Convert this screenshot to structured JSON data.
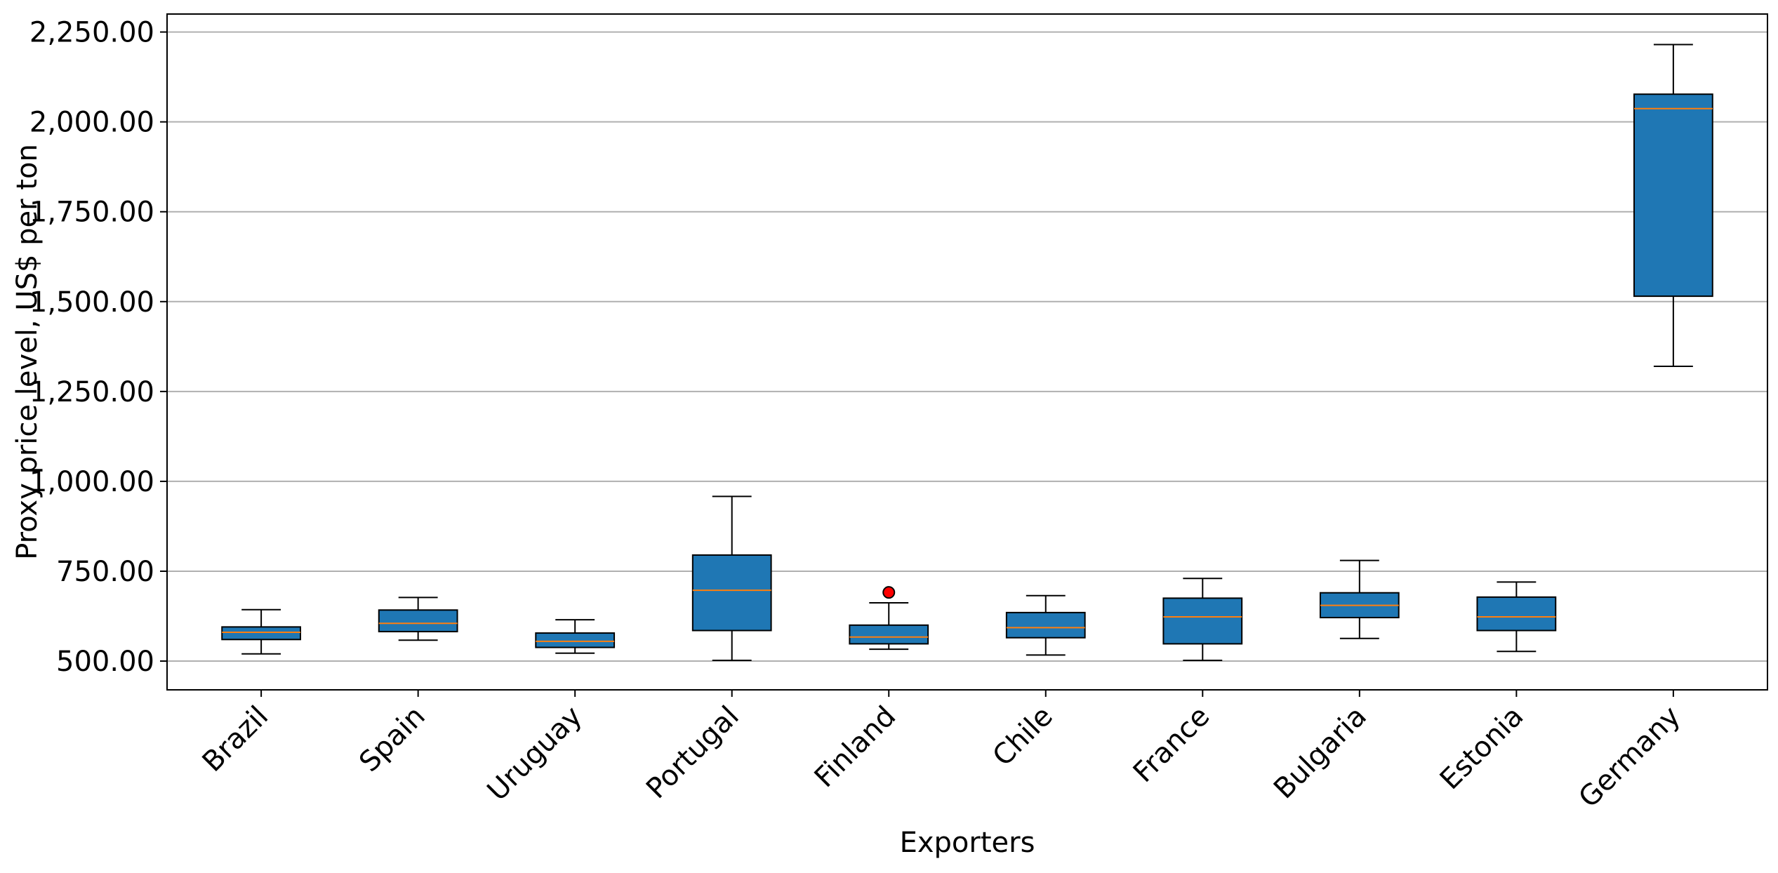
{
  "chart_data": {
    "type": "box",
    "title": "",
    "xlabel": "Exporters",
    "ylabel": "Proxy price level, US$ per ton",
    "ylim": [
      420,
      2300
    ],
    "yticks": [
      500,
      750,
      1000,
      1250,
      1500,
      1750,
      2000,
      2250
    ],
    "ytick_labels": [
      "500.00",
      "750.00",
      "1,000.00",
      "1,250.00",
      "1,500.00",
      "1,750.00",
      "2,000.00",
      "2,250.00"
    ],
    "grid": "horizontal",
    "categories": [
      "Brazil",
      "Spain",
      "Uruguay",
      "Portugal",
      "Finland",
      "Chile",
      "France",
      "Bulgaria",
      "Estonia",
      "Germany"
    ],
    "boxes": [
      {
        "category": "Brazil",
        "whisker_low": 520,
        "q1": 560,
        "median": 580,
        "q3": 595,
        "whisker_high": 643,
        "outliers": []
      },
      {
        "category": "Spain",
        "whisker_low": 558,
        "q1": 582,
        "median": 605,
        "q3": 642,
        "whisker_high": 677,
        "outliers": []
      },
      {
        "category": "Uruguay",
        "whisker_low": 522,
        "q1": 538,
        "median": 555,
        "q3": 578,
        "whisker_high": 615,
        "outliers": []
      },
      {
        "category": "Portugal",
        "whisker_low": 502,
        "q1": 585,
        "median": 697,
        "q3": 795,
        "whisker_high": 958,
        "outliers": []
      },
      {
        "category": "Finland",
        "whisker_low": 533,
        "q1": 548,
        "median": 567,
        "q3": 600,
        "whisker_high": 662,
        "outliers": [
          691
        ]
      },
      {
        "category": "Chile",
        "whisker_low": 517,
        "q1": 565,
        "median": 593,
        "q3": 635,
        "whisker_high": 682,
        "outliers": []
      },
      {
        "category": "France",
        "whisker_low": 502,
        "q1": 548,
        "median": 623,
        "q3": 675,
        "whisker_high": 730,
        "outliers": []
      },
      {
        "category": "Bulgaria",
        "whisker_low": 563,
        "q1": 621,
        "median": 655,
        "q3": 690,
        "whisker_high": 780,
        "outliers": []
      },
      {
        "category": "Estonia",
        "whisker_low": 527,
        "q1": 585,
        "median": 623,
        "q3": 678,
        "whisker_high": 720,
        "outliers": []
      },
      {
        "category": "Germany",
        "whisker_low": 1320,
        "q1": 1515,
        "median": 2037,
        "q3": 2077,
        "whisker_high": 2215,
        "outliers": []
      }
    ],
    "colors": {
      "box_fill": "#1f77b4",
      "box_edge": "#000000",
      "median_line": "#ff7f0e",
      "outlier_fill": "#ff0000",
      "grid": "#b0b0b0"
    }
  }
}
